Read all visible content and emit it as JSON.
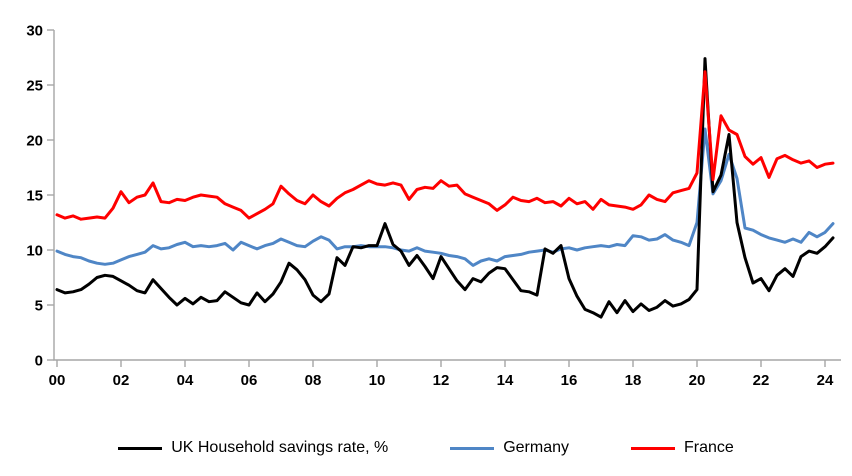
{
  "page": {
    "background": "#ffffff"
  },
  "chart_data": {
    "type": "line",
    "title": "",
    "xlabel": "",
    "ylabel": "",
    "x_unit": "quarterly",
    "x_start": 2000,
    "x_step": 0.25,
    "x_end": 2024.25,
    "ylim": [
      0,
      30
    ],
    "yticks": [
      0,
      5,
      10,
      15,
      20,
      25,
      30
    ],
    "xticks": [
      {
        "year": 2000,
        "label": "00"
      },
      {
        "year": 2002,
        "label": "02"
      },
      {
        "year": 2004,
        "label": "04"
      },
      {
        "year": 2006,
        "label": "06"
      },
      {
        "year": 2008,
        "label": "08"
      },
      {
        "year": 2010,
        "label": "10"
      },
      {
        "year": 2012,
        "label": "12"
      },
      {
        "year": 2014,
        "label": "14"
      },
      {
        "year": 2016,
        "label": "16"
      },
      {
        "year": 2018,
        "label": "18"
      },
      {
        "year": 2020,
        "label": "20"
      },
      {
        "year": 2022,
        "label": "22"
      },
      {
        "year": 2024,
        "label": "24"
      }
    ],
    "grid": false,
    "legend_position": "bottom",
    "axis_color": "#a6a6a6",
    "tick_label_color": "#000000",
    "series": [
      {
        "name": "UK Household savings rate, %",
        "color": "#000000",
        "values": [
          6.4,
          6.1,
          6.2,
          6.4,
          6.9,
          7.5,
          7.7,
          7.6,
          7.2,
          6.8,
          6.3,
          6.1,
          7.3,
          6.5,
          5.7,
          5.0,
          5.6,
          5.1,
          5.7,
          5.3,
          5.4,
          6.2,
          5.7,
          5.2,
          5.0,
          6.1,
          5.3,
          6.0,
          7.1,
          8.8,
          8.2,
          7.3,
          5.9,
          5.3,
          6.0,
          9.3,
          8.6,
          10.3,
          10.2,
          10.4,
          10.4,
          12.4,
          10.5,
          9.9,
          8.6,
          9.5,
          8.5,
          7.4,
          9.4,
          8.3,
          7.2,
          6.4,
          7.4,
          7.1,
          7.9,
          8.4,
          8.3,
          7.3,
          6.3,
          6.2,
          5.9,
          10.1,
          9.7,
          10.4,
          7.4,
          5.8,
          4.6,
          4.3,
          3.9,
          5.3,
          4.3,
          5.4,
          4.4,
          5.1,
          4.5,
          4.8,
          5.4,
          4.9,
          5.1,
          5.5,
          6.4,
          27.4,
          15.3,
          16.8,
          20.5,
          12.5,
          9.3,
          7.0,
          7.4,
          6.3,
          7.7,
          8.3,
          7.6,
          9.4,
          9.9,
          9.7,
          10.3,
          11.1
        ]
      },
      {
        "name": "Germany",
        "color": "#4f86c6",
        "values": [
          9.9,
          9.6,
          9.4,
          9.3,
          9.0,
          8.8,
          8.7,
          8.8,
          9.1,
          9.4,
          9.6,
          9.8,
          10.4,
          10.1,
          10.2,
          10.5,
          10.7,
          10.3,
          10.4,
          10.3,
          10.4,
          10.6,
          10.0,
          10.7,
          10.4,
          10.1,
          10.4,
          10.6,
          11.0,
          10.7,
          10.4,
          10.3,
          10.8,
          11.2,
          10.9,
          10.1,
          10.3,
          10.3,
          10.4,
          10.3,
          10.3,
          10.3,
          10.2,
          10.0,
          9.9,
          10.2,
          9.9,
          9.8,
          9.7,
          9.5,
          9.4,
          9.2,
          8.6,
          9.0,
          9.2,
          9.0,
          9.4,
          9.5,
          9.6,
          9.8,
          9.9,
          10.0,
          9.8,
          10.1,
          10.2,
          10.0,
          10.2,
          10.3,
          10.4,
          10.3,
          10.5,
          10.4,
          11.3,
          11.2,
          10.9,
          11.0,
          11.4,
          10.9,
          10.7,
          10.4,
          12.5,
          21.0,
          15.1,
          16.3,
          18.7,
          16.5,
          12.0,
          11.8,
          11.4,
          11.1,
          10.9,
          10.7,
          11.0,
          10.7,
          11.6,
          11.2,
          11.6,
          12.4
        ]
      },
      {
        "name": "France",
        "color": "#ff0000",
        "values": [
          13.2,
          12.9,
          13.1,
          12.8,
          12.9,
          13.0,
          12.9,
          13.8,
          15.3,
          14.3,
          14.8,
          15.0,
          16.1,
          14.4,
          14.3,
          14.6,
          14.5,
          14.8,
          15.0,
          14.9,
          14.8,
          14.2,
          13.9,
          13.6,
          12.9,
          13.3,
          13.7,
          14.2,
          15.8,
          15.1,
          14.5,
          14.2,
          15.0,
          14.4,
          14.0,
          14.7,
          15.2,
          15.5,
          15.9,
          16.3,
          16.0,
          15.9,
          16.1,
          15.9,
          14.6,
          15.5,
          15.7,
          15.6,
          16.3,
          15.8,
          15.9,
          15.1,
          14.8,
          14.5,
          14.2,
          13.6,
          14.1,
          14.8,
          14.5,
          14.4,
          14.7,
          14.3,
          14.4,
          14.0,
          14.7,
          14.2,
          14.4,
          13.7,
          14.6,
          14.1,
          14.0,
          13.9,
          13.7,
          14.1,
          15.0,
          14.6,
          14.4,
          15.2,
          15.4,
          15.6,
          17.0,
          26.2,
          16.4,
          22.2,
          20.9,
          20.5,
          18.5,
          17.8,
          18.4,
          16.6,
          18.3,
          18.6,
          18.2,
          17.9,
          18.1,
          17.5,
          17.8,
          17.9
        ]
      }
    ],
    "draw_order": [
      1,
      0,
      2
    ]
  }
}
